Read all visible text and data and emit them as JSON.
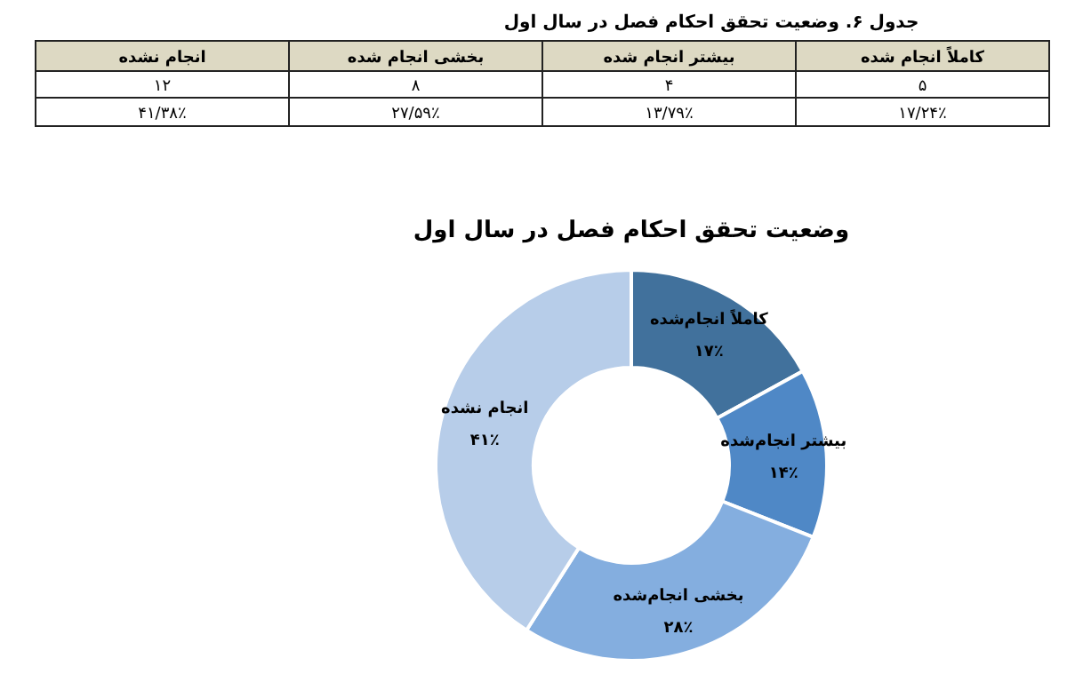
{
  "chart_data": {
    "type": "donut",
    "title": "وضعیت تحقق احکام فصل در سال اول",
    "categories": [
      "کاملاً انجام‌شده",
      "بیشتر انجام‌شده",
      "بخشی انجام‌شده",
      "انجام نشده"
    ],
    "values": [
      17,
      14,
      28,
      41
    ],
    "value_labels": [
      "۱۷٪",
      "۱۴٪",
      "۲۸٪",
      "۴۱٪"
    ],
    "colors": [
      "#41719c",
      "#4f88c6",
      "#84aedf",
      "#b7cde9"
    ],
    "annotations": [
      "جدول ۶. وضعیت تحقق احکام فصل در سال اول",
      "کاملاً انجام شده",
      "بیشتر انجام شده",
      "بخشی انجام شده",
      "انجام نشده",
      "۵",
      "۴",
      "۸",
      "۱۲",
      "۱۷/۲۴٪",
      "۱۳/۷۹٪",
      "۲۷/۵۹٪",
      "۴۱/۳۸٪"
    ]
  }
}
